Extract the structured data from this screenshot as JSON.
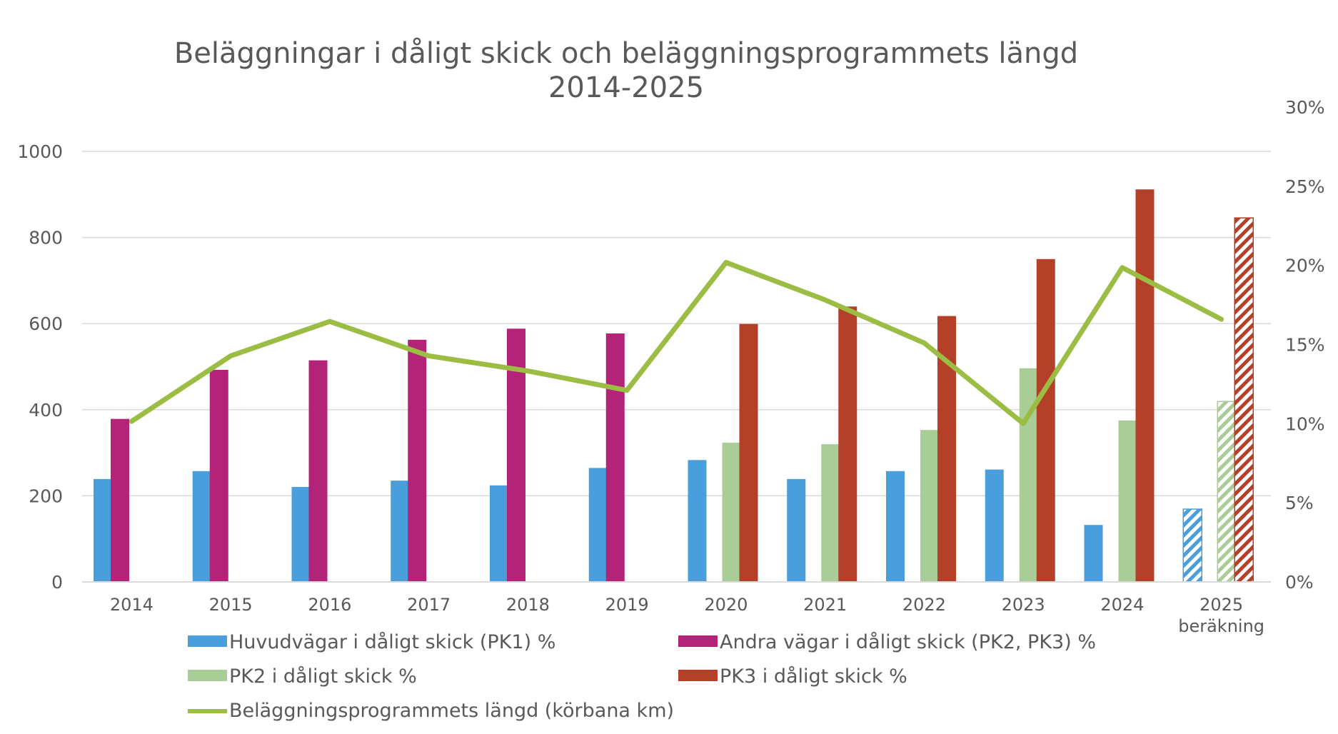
{
  "chart_data": {
    "type": "bar",
    "title": "Beläggningar i dåligt skick och beläggningsprogrammets längd",
    "subtitle": "2014-2025",
    "categories": [
      "2014",
      "2015",
      "2016",
      "2017",
      "2018",
      "2019",
      "2020",
      "2021",
      "2022",
      "2023",
      "2024",
      "2025"
    ],
    "category_sublabels": {
      "2025": "beräkning"
    },
    "y_left": {
      "min": 0,
      "max": 1000,
      "ticks": [
        "0",
        "200",
        "400",
        "600",
        "800",
        "1000"
      ]
    },
    "y_right": {
      "min": 0,
      "max": 0.3,
      "ticks": [
        "0%",
        "5%",
        "10%",
        "15%",
        "20%",
        "25%",
        "30%"
      ]
    },
    "gridlines": true,
    "legend_position": "bottom",
    "estimated_category": "2025",
    "series": [
      {
        "key": "pk1",
        "name": "Huvudvägar i dåligt skick (PK1) %",
        "type": "bar",
        "axis": "right",
        "color": "#4a9edb",
        "values": [
          0.065,
          0.07,
          0.06,
          0.064,
          0.061,
          0.072,
          0.077,
          0.065,
          0.07,
          0.071,
          0.036,
          0.046
        ]
      },
      {
        "key": "pk23",
        "name": "Andra vägar i dåligt skick (PK2, PK3) %",
        "type": "bar",
        "axis": "right",
        "color": "#b32378",
        "values": [
          0.103,
          0.134,
          0.14,
          0.153,
          0.16,
          0.157,
          null,
          null,
          null,
          null,
          null,
          null
        ]
      },
      {
        "key": "pk2",
        "name": "PK2 i dåligt skick %",
        "type": "bar",
        "axis": "right",
        "color": "#a9cd97",
        "values": [
          null,
          null,
          null,
          null,
          null,
          null,
          0.088,
          0.087,
          0.096,
          0.135,
          0.102,
          0.114
        ]
      },
      {
        "key": "pk3",
        "name": "PK3 i dåligt skick %",
        "type": "bar",
        "axis": "right",
        "color": "#b5402a",
        "values": [
          null,
          null,
          null,
          null,
          null,
          null,
          0.163,
          0.174,
          0.168,
          0.204,
          0.248,
          0.23
        ]
      },
      {
        "key": "program",
        "name": "Beläggningsprogrammets längd (körbana km)",
        "type": "line",
        "axis": "left",
        "color": "#9cbd43",
        "values": [
          373,
          525,
          605,
          525,
          490,
          445,
          742,
          655,
          555,
          368,
          730,
          610
        ]
      }
    ]
  }
}
